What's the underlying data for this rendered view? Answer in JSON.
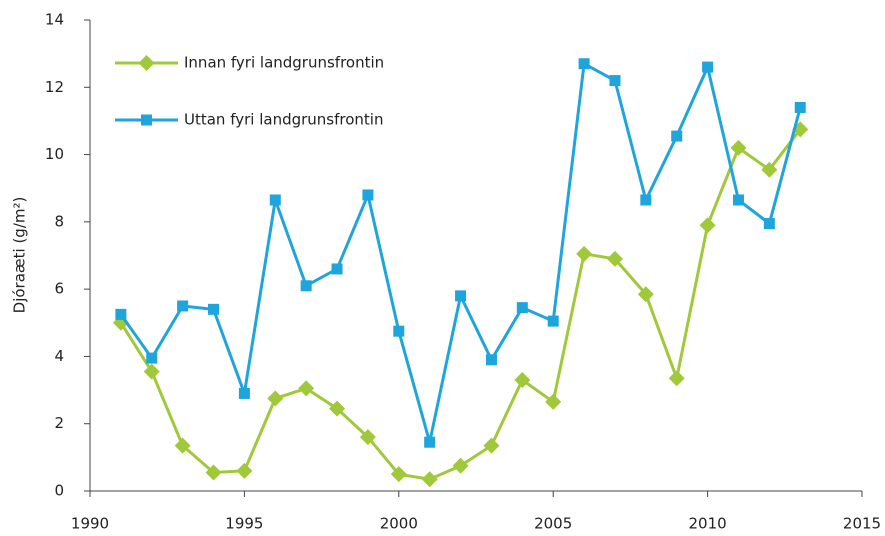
{
  "chart_data": {
    "type": "line",
    "y_label": "Djóraæti (g/m²)",
    "x": [
      1991,
      1992,
      1993,
      1994,
      1995,
      1996,
      1997,
      1998,
      1999,
      2000,
      2001,
      2002,
      2003,
      2004,
      2005,
      2006,
      2007,
      2008,
      2009,
      2010,
      2011,
      2012,
      2013
    ],
    "series": [
      {
        "name": "Innan fyri landgrunsfrontin",
        "color": "#a0c93a",
        "marker": "diamond",
        "values": [
          5.0,
          3.55,
          1.35,
          0.55,
          0.6,
          2.75,
          3.05,
          2.45,
          1.6,
          0.5,
          0.35,
          0.75,
          1.35,
          3.3,
          2.65,
          7.05,
          6.9,
          5.85,
          3.35,
          7.9,
          10.2,
          9.55,
          10.75
        ]
      },
      {
        "name": "Uttan fyri landgrunsfrontin",
        "color": "#1ea5dc",
        "marker": "square",
        "values": [
          5.25,
          3.95,
          5.5,
          5.4,
          2.9,
          8.65,
          6.1,
          6.6,
          8.8,
          4.75,
          1.45,
          5.8,
          3.9,
          5.45,
          5.05,
          12.7,
          12.2,
          8.65,
          10.55,
          12.6,
          8.65,
          7.95,
          11.4
        ]
      }
    ],
    "xlim": [
      1990,
      2015
    ],
    "xticks": [
      1990,
      1995,
      2000,
      2005,
      2010,
      2015
    ],
    "ylim": [
      0,
      14
    ],
    "yticks": [
      0,
      2,
      4,
      6,
      8,
      10,
      12,
      14
    ],
    "legend": "upper-left"
  }
}
